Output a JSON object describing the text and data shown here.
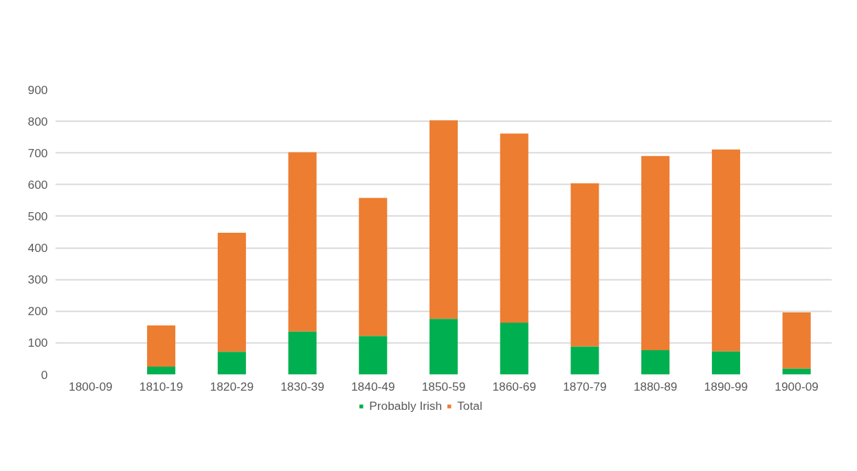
{
  "chart_data": {
    "type": "bar",
    "stacked": true,
    "categories": [
      "1800-09",
      "1810-19",
      "1820-29",
      "1830-39",
      "1840-49",
      "1850-59",
      "1860-69",
      "1870-79",
      "1880-89",
      "1890-99",
      "1900-09"
    ],
    "series": [
      {
        "name": "Probably Irish",
        "color": "#00b050",
        "values": [
          0,
          25,
          72,
          136,
          122,
          176,
          164,
          89,
          77,
          73,
          19
        ]
      },
      {
        "name": "Total",
        "color": "#ed7d31",
        "values": [
          0,
          130,
          376,
          566,
          436,
          627,
          597,
          515,
          613,
          638,
          177
        ]
      }
    ],
    "ylim": [
      0,
      900
    ],
    "yticks": [
      0,
      100,
      200,
      300,
      400,
      500,
      600,
      700,
      800,
      900
    ],
    "grid": "y",
    "legend": "bottom"
  }
}
